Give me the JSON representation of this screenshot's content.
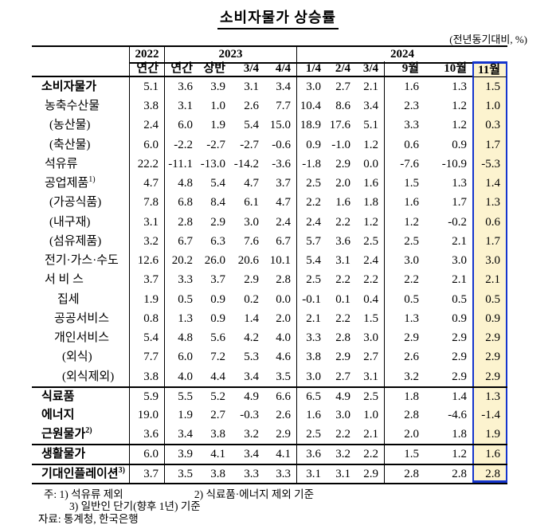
{
  "title": "소비자물가 상승률",
  "unit_note": "(전년동기대비, %)",
  "colors": {
    "highlight_background": "#FCF3CF",
    "highlight_border": "#1535CC",
    "line_color": "#000000"
  },
  "table": {
    "year_groups": [
      {
        "label": "2022",
        "span": 1
      },
      {
        "label": "2023",
        "span": 4
      },
      {
        "label": "2024",
        "span": 6
      }
    ],
    "sub_headers": [
      "연간",
      "연간",
      "상반",
      "3/4",
      "4/4",
      "1/4",
      "2/4",
      "3/4",
      "9월",
      "10월",
      "11월"
    ],
    "highlighted_column": "11월",
    "rows": [
      {
        "label": "소비자물가",
        "sup": "",
        "bold": true,
        "indent": 0,
        "sep": false,
        "values": [
          "5.1",
          "3.6",
          "3.9",
          "3.1",
          "3.4",
          "3.0",
          "2.7",
          "2.1",
          "1.6",
          "1.3",
          "1.5"
        ]
      },
      {
        "label": "농축수산물",
        "sup": "",
        "bold": false,
        "indent": 1,
        "sep": false,
        "values": [
          "3.8",
          "3.1",
          "1.0",
          "2.6",
          "7.7",
          "10.4",
          "8.6",
          "3.4",
          "2.3",
          "1.2",
          "1.0"
        ]
      },
      {
        "label": "(농산물)",
        "sup": "",
        "bold": false,
        "indent": 2,
        "sep": false,
        "values": [
          "2.4",
          "6.0",
          "1.9",
          "5.4",
          "15.0",
          "18.9",
          "17.6",
          "5.1",
          "3.3",
          "1.2",
          "0.3"
        ]
      },
      {
        "label": "(축산물)",
        "sup": "",
        "bold": false,
        "indent": 2,
        "sep": false,
        "values": [
          "6.0",
          "-2.2",
          "-2.7",
          "-2.7",
          "-0.6",
          "0.9",
          "-1.0",
          "1.2",
          "0.6",
          "0.9",
          "1.7"
        ]
      },
      {
        "label": "석유류",
        "sup": "",
        "bold": false,
        "indent": 1,
        "sep": false,
        "values": [
          "22.2",
          "-11.1",
          "-13.0",
          "-14.2",
          "-3.6",
          "-1.8",
          "2.9",
          "0.0",
          "-7.6",
          "-10.9",
          "-5.3"
        ]
      },
      {
        "label": "공업제품",
        "sup": "1)",
        "bold": false,
        "indent": 1,
        "sep": false,
        "values": [
          "4.7",
          "4.8",
          "5.4",
          "4.7",
          "3.7",
          "2.5",
          "2.0",
          "1.6",
          "1.5",
          "1.3",
          "1.4"
        ]
      },
      {
        "label": "(가공식품)",
        "sup": "",
        "bold": false,
        "indent": 2,
        "sep": false,
        "values": [
          "7.8",
          "6.8",
          "8.4",
          "6.1",
          "4.7",
          "2.2",
          "1.6",
          "1.8",
          "1.6",
          "1.7",
          "1.3"
        ]
      },
      {
        "label": "(내구재)",
        "sup": "",
        "bold": false,
        "indent": 2,
        "sep": false,
        "values": [
          "3.1",
          "2.8",
          "2.9",
          "3.0",
          "2.4",
          "2.4",
          "2.2",
          "1.2",
          "1.2",
          "-0.2",
          "0.6"
        ]
      },
      {
        "label": "(섬유제품)",
        "sup": "",
        "bold": false,
        "indent": 2,
        "sep": false,
        "values": [
          "3.2",
          "6.7",
          "6.3",
          "7.6",
          "6.7",
          "5.7",
          "3.6",
          "2.5",
          "2.5",
          "2.1",
          "1.7"
        ]
      },
      {
        "label": "전기·가스·수도",
        "sup": "",
        "bold": false,
        "indent": 1,
        "sep": false,
        "values": [
          "12.6",
          "20.2",
          "26.0",
          "20.6",
          "10.1",
          "5.4",
          "3.1",
          "2.4",
          "3.0",
          "3.0",
          "3.0"
        ]
      },
      {
        "label": "서 비 스",
        "sup": "",
        "bold": false,
        "indent": 1,
        "sep": false,
        "values": [
          "3.7",
          "3.3",
          "3.7",
          "2.9",
          "2.8",
          "2.5",
          "2.2",
          "2.2",
          "2.2",
          "2.1",
          "2.1"
        ]
      },
      {
        "label": "집세",
        "sup": "",
        "bold": false,
        "indent": 4,
        "sep": false,
        "values": [
          "1.9",
          "0.5",
          "0.9",
          "0.2",
          "0.0",
          "-0.1",
          "0.1",
          "0.4",
          "0.5",
          "0.5",
          "0.5"
        ]
      },
      {
        "label": "공공서비스",
        "sup": "",
        "bold": false,
        "indent": 3,
        "sep": false,
        "values": [
          "0.8",
          "1.3",
          "0.9",
          "1.4",
          "2.0",
          "2.1",
          "2.2",
          "1.5",
          "1.3",
          "0.9",
          "0.9"
        ]
      },
      {
        "label": "개인서비스",
        "sup": "",
        "bold": false,
        "indent": 3,
        "sep": false,
        "values": [
          "5.4",
          "4.8",
          "5.6",
          "4.2",
          "4.0",
          "3.3",
          "2.8",
          "3.0",
          "2.9",
          "2.9",
          "2.9"
        ]
      },
      {
        "label": "(외식)",
        "sup": "",
        "bold": false,
        "indent": 5,
        "sep": false,
        "values": [
          "7.7",
          "6.0",
          "7.2",
          "5.3",
          "4.6",
          "3.8",
          "2.9",
          "2.7",
          "2.6",
          "2.9",
          "2.9"
        ]
      },
      {
        "label": "(외식제외)",
        "sup": "",
        "bold": false,
        "indent": 5,
        "sep": false,
        "values": [
          "3.8",
          "4.0",
          "4.4",
          "3.4",
          "3.5",
          "3.0",
          "2.7",
          "3.1",
          "3.2",
          "2.9",
          "2.9"
        ]
      },
      {
        "label": "식료품",
        "sup": "",
        "bold": true,
        "indent": 0,
        "sep": true,
        "values": [
          "5.9",
          "5.5",
          "5.2",
          "4.9",
          "6.6",
          "6.5",
          "4.9",
          "2.5",
          "1.8",
          "1.4",
          "1.3"
        ]
      },
      {
        "label": "에너지",
        "sup": "",
        "bold": true,
        "indent": 0,
        "sep": false,
        "values": [
          "19.0",
          "1.9",
          "2.7",
          "-0.3",
          "2.6",
          "1.6",
          "3.0",
          "1.0",
          "2.8",
          "-4.6",
          "-1.4"
        ]
      },
      {
        "label": "근원물가",
        "sup": "2)",
        "bold": true,
        "indent": 0,
        "sep": false,
        "values": [
          "3.6",
          "3.4",
          "3.8",
          "3.2",
          "2.9",
          "2.5",
          "2.2",
          "2.1",
          "2.0",
          "1.8",
          "1.9"
        ]
      },
      {
        "label": "생활물가",
        "sup": "",
        "bold": true,
        "indent": 0,
        "sep": true,
        "values": [
          "6.0",
          "3.9",
          "4.1",
          "3.4",
          "4.1",
          "3.6",
          "3.2",
          "2.2",
          "1.5",
          "1.2",
          "1.6"
        ]
      },
      {
        "label": "기대인플레이션",
        "sup": "3)",
        "bold": true,
        "indent": 0,
        "sep": true,
        "values": [
          "3.7",
          "3.5",
          "3.8",
          "3.3",
          "3.3",
          "3.1",
          "3.1",
          "2.9",
          "2.8",
          "2.8",
          "2.8"
        ]
      }
    ]
  },
  "footnotes": {
    "label": "주:",
    "items": [
      "1) 석유류 제외",
      "2) 식료품·에너지 제외 기준",
      "3) 일반인 단기(향후 1년) 기준"
    ],
    "source_label": "자료:",
    "source_text": "통계청, 한국은행"
  }
}
